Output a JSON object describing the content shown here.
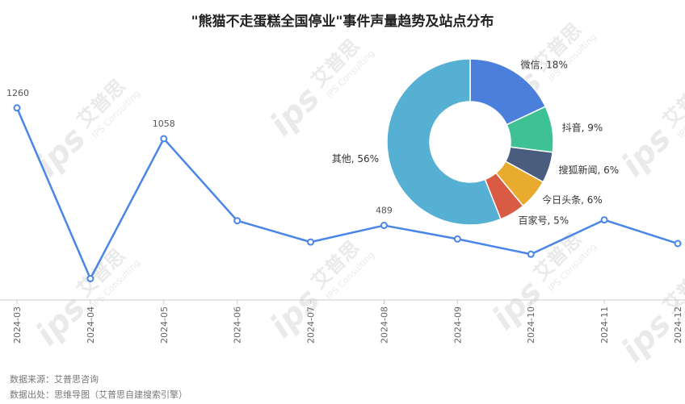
{
  "title": "\"熊猫不走蛋糕全国停业\"事件声量趋势及站点分布",
  "colors": {
    "line": "#4a86e8",
    "axis": "#cccccc",
    "watermark": "#d9d9d9"
  },
  "watermark": {
    "brand": "艾普思",
    "sub": "IPS Consulting",
    "logo": "ips"
  },
  "chart_data": [
    {
      "type": "line",
      "x": [
        "2024-03",
        "2024-04",
        "2024-05",
        "2024-06",
        "2024-07",
        "2024-08",
        "2024-09",
        "2024-10",
        "2024-11",
        "2024-12"
      ],
      "values": [
        1260,
        140,
        1058,
        520,
        380,
        489,
        400,
        300,
        525,
        370
      ],
      "data_labels": [
        {
          "index": 0,
          "text": "1260"
        },
        {
          "index": 2,
          "text": "1058"
        },
        {
          "index": 5,
          "text": "489"
        }
      ],
      "ylim": [
        0,
        1600
      ],
      "grid": false,
      "xlabel": "",
      "ylabel": ""
    },
    {
      "type": "pie",
      "variant": "donut",
      "slices": [
        {
          "label": "微信",
          "value": 18,
          "text": "微信, 18%",
          "color": "#4a7fdc"
        },
        {
          "label": "抖音",
          "value": 9,
          "text": "抖音, 9%",
          "color": "#3ec295"
        },
        {
          "label": "搜狐新闻",
          "value": 6,
          "text": "搜狐新闻, 6%",
          "color": "#4b5d7e"
        },
        {
          "label": "今日头条",
          "value": 6,
          "text": "今日头条, 6%",
          "color": "#e8ab2e"
        },
        {
          "label": "百家号",
          "value": 5,
          "text": "百家号, 5%",
          "color": "#d95b43"
        },
        {
          "label": "其他",
          "value": 56,
          "text": "其他, 56%",
          "color": "#55b0d3"
        }
      ]
    }
  ],
  "source": {
    "line1": "数据来源：艾普思咨询",
    "line2": "数据出处：思维导图（艾普思自建搜索引擎）"
  }
}
